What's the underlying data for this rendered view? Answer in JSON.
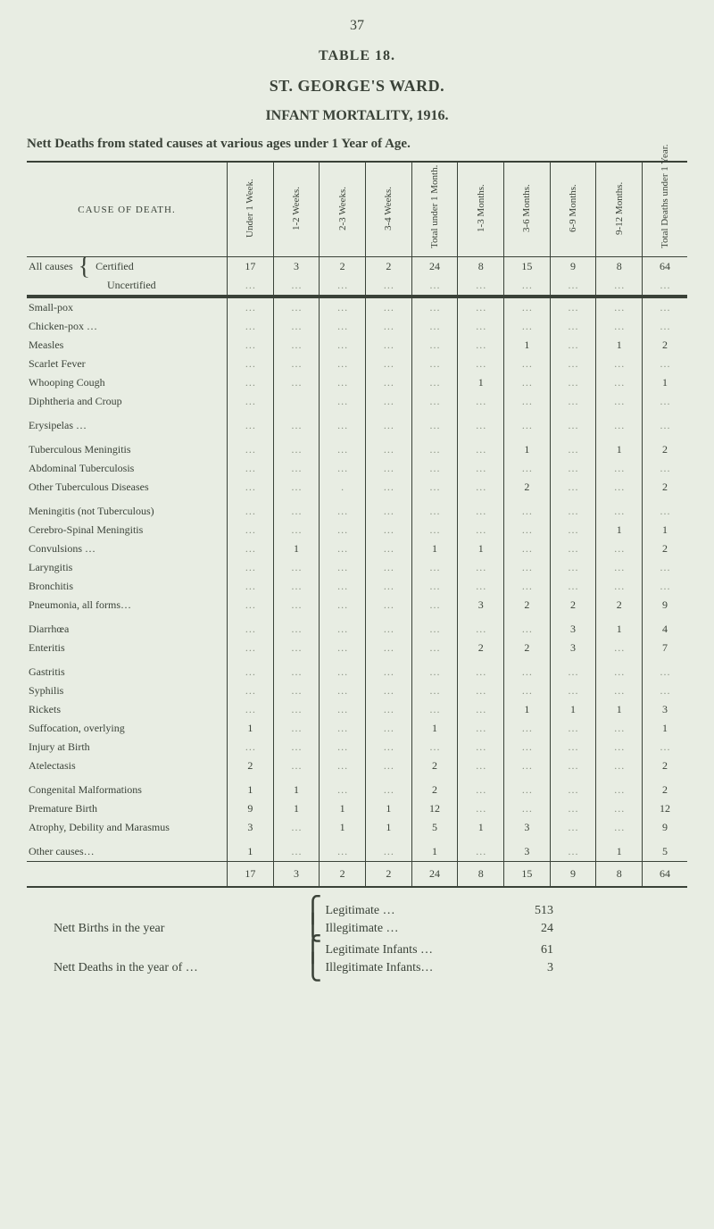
{
  "page_number": "37",
  "table_label": "TABLE 18.",
  "ward_title": "ST. GEORGE'S WARD.",
  "subtitle": "INFANT MORTALITY, 1916.",
  "intro_line": "Nett Deaths from stated causes at various ages under 1 Year of Age.",
  "columns": {
    "cause": "CAUSE OF DEATH.",
    "c1": "Under 1 Week.",
    "c2": "1-2 Weeks.",
    "c3": "2-3 Weeks.",
    "c4": "3-4 Weeks.",
    "c5": "Total under 1 Month.",
    "c6": "1-3 Months.",
    "c7": "3-6 Months.",
    "c8": "6-9 Months.",
    "c9": "9-12 Months.",
    "c10": "Total Deaths under 1 Year."
  },
  "all_causes_label": "All causes",
  "all_causes_certified": "Certified",
  "all_causes_uncertified": "Uncertified",
  "all_causes_row": [
    "17",
    "3",
    "2",
    "2",
    "24",
    "8",
    "15",
    "9",
    "8",
    "64"
  ],
  "rows": [
    {
      "label": "Small-pox",
      "v": [
        "…",
        "…",
        "…",
        "…",
        "…",
        "…",
        "…",
        "…",
        "…",
        "…"
      ]
    },
    {
      "label": "Chicken-pox …",
      "v": [
        "…",
        "…",
        "…",
        "…",
        "…",
        "…",
        "…",
        "…",
        "…",
        "…"
      ]
    },
    {
      "label": "Measles",
      "v": [
        "…",
        "…",
        "…",
        "…",
        "…",
        "…",
        "1",
        "…",
        "1",
        "2"
      ]
    },
    {
      "label": "Scarlet Fever",
      "v": [
        "…",
        "…",
        "…",
        "…",
        "…",
        "…",
        "…",
        "…",
        "…",
        "…"
      ]
    },
    {
      "label": "Whooping Cough",
      "v": [
        "…",
        "…",
        "…",
        "…",
        "…",
        "1",
        "…",
        "…",
        "…",
        "1"
      ]
    },
    {
      "label": "Diphtheria and Croup",
      "v": [
        "…",
        "",
        "…",
        "…",
        "…",
        "…",
        "…",
        "…",
        "…",
        "…"
      ]
    },
    {
      "label": "",
      "v": [
        "",
        "",
        "",
        "",
        "",
        "",
        "",
        "",
        "",
        ""
      ],
      "spacer": true
    },
    {
      "label": "Erysipelas …",
      "v": [
        "…",
        "…",
        "…",
        "…",
        "…",
        "…",
        "…",
        "…",
        "…",
        "…"
      ]
    },
    {
      "label": "",
      "v": [
        "",
        "",
        "",
        "",
        "",
        "",
        "",
        "",
        "",
        ""
      ],
      "spacer": true
    },
    {
      "label": "Tuberculous Meningitis",
      "v": [
        "…",
        "…",
        "…",
        "…",
        "…",
        "…",
        "1",
        "…",
        "1",
        "2"
      ]
    },
    {
      "label": "Abdominal Tuberculosis",
      "v": [
        "…",
        "…",
        "…",
        "…",
        "…",
        "…",
        "…",
        "…",
        "…",
        "…"
      ]
    },
    {
      "label": "Other Tuberculous Diseases",
      "v": [
        "…",
        "…",
        ".",
        "…",
        "…",
        "…",
        "2",
        "…",
        "…",
        "2"
      ]
    },
    {
      "label": "",
      "v": [
        "",
        "",
        "",
        "",
        "",
        "",
        "",
        "",
        "",
        ""
      ],
      "spacer": true
    },
    {
      "label": "Meningitis (not Tuberculous)",
      "v": [
        "…",
        "…",
        "…",
        "…",
        "…",
        "…",
        "…",
        "…",
        "…",
        "…"
      ]
    },
    {
      "label": "Cerebro-Spinal Meningitis",
      "v": [
        "…",
        "…",
        "…",
        "…",
        "…",
        "…",
        "…",
        "…",
        "1",
        "1"
      ]
    },
    {
      "label": "Convulsions …",
      "v": [
        "…",
        "1",
        "…",
        "…",
        "1",
        "1",
        "…",
        "…",
        "…",
        "2"
      ]
    },
    {
      "label": "Laryngitis",
      "v": [
        "…",
        "…",
        "…",
        "…",
        "…",
        "…",
        "…",
        "…",
        "…",
        "…"
      ]
    },
    {
      "label": "Bronchitis",
      "v": [
        "…",
        "…",
        "…",
        "…",
        "…",
        "…",
        "…",
        "…",
        "…",
        "…"
      ]
    },
    {
      "label": "Pneumonia, all forms…",
      "v": [
        "…",
        "…",
        "…",
        "…",
        "…",
        "3",
        "2",
        "2",
        "2",
        "9"
      ]
    },
    {
      "label": "",
      "v": [
        "",
        "",
        "",
        "",
        "",
        "",
        "",
        "",
        "",
        ""
      ],
      "spacer": true
    },
    {
      "label": "Diarrhœa",
      "v": [
        "…",
        "…",
        "…",
        "…",
        "…",
        "…",
        "…",
        "3",
        "1",
        "4"
      ]
    },
    {
      "label": "Enteritis",
      "v": [
        "…",
        "…",
        "…",
        "…",
        "…",
        "2",
        "2",
        "3",
        "…",
        "7"
      ]
    },
    {
      "label": "",
      "v": [
        "",
        "",
        "",
        "",
        "",
        "",
        "",
        "",
        "",
        ""
      ],
      "spacer": true
    },
    {
      "label": "Gastritis",
      "v": [
        "…",
        "…",
        "…",
        "…",
        "…",
        "…",
        "…",
        "…",
        "…",
        "…"
      ]
    },
    {
      "label": "Syphilis",
      "v": [
        "…",
        "…",
        "…",
        "…",
        "…",
        "…",
        "…",
        "…",
        "…",
        "…"
      ]
    },
    {
      "label": "Rickets",
      "v": [
        "…",
        "…",
        "…",
        "…",
        "…",
        "…",
        "1",
        "1",
        "1",
        "3"
      ]
    },
    {
      "label": "Suffocation, overlying",
      "v": [
        "1",
        "…",
        "…",
        "…",
        "1",
        "…",
        "…",
        "…",
        "…",
        "1"
      ]
    },
    {
      "label": "Injury at Birth",
      "v": [
        "…",
        "…",
        "…",
        "…",
        "…",
        "…",
        "…",
        "…",
        "…",
        "…"
      ]
    },
    {
      "label": "Atelectasis",
      "v": [
        "2",
        "…",
        "…",
        "…",
        "2",
        "…",
        "…",
        "…",
        "…",
        "2"
      ]
    },
    {
      "label": "",
      "v": [
        "",
        "",
        "",
        "",
        "",
        "",
        "",
        "",
        "",
        ""
      ],
      "spacer": true
    },
    {
      "label": "Congenital Malformations",
      "v": [
        "1",
        "1",
        "…",
        "…",
        "2",
        "…",
        "…",
        "…",
        "…",
        "2"
      ]
    },
    {
      "label": "Premature Birth",
      "v": [
        "9",
        "1",
        "1",
        "1",
        "12",
        "…",
        "…",
        "…",
        "…",
        "12"
      ]
    },
    {
      "label": "Atrophy, Debility and Marasmus",
      "v": [
        "3",
        "…",
        "1",
        "1",
        "5",
        "1",
        "3",
        "…",
        "…",
        "9"
      ]
    },
    {
      "label": "",
      "v": [
        "",
        "",
        "",
        "",
        "",
        "",
        "",
        "",
        "",
        ""
      ],
      "spacer": true
    },
    {
      "label": "Other causes…",
      "v": [
        "1",
        "…",
        "…",
        "…",
        "1",
        "…",
        "3",
        "…",
        "1",
        "5"
      ]
    }
  ],
  "totals": [
    "17",
    "3",
    "2",
    "2",
    "24",
    "8",
    "15",
    "9",
    "8",
    "64"
  ],
  "footer": {
    "births_label": "Nett Births in the year",
    "deaths_label": "Nett Deaths in the year of …",
    "legitimate": "Legitimate …",
    "illegitimate": "Illegitimate …",
    "legitimate_infants": "Legitimate Infants …",
    "illegitimate_infants": "Illegitimate Infants…",
    "val_legitimate": "513",
    "val_illegitimate": "24",
    "val_legit_infants": "61",
    "val_illegit_infants": "3"
  }
}
